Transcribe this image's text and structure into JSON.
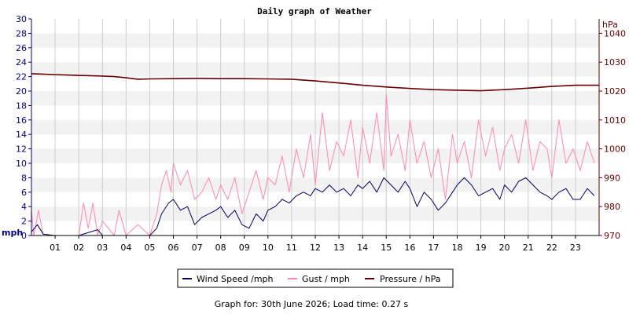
{
  "chart_data": {
    "type": "line",
    "title": "Daily graph of Weather",
    "left_axis_unit": "mph",
    "right_axis_unit": "hPa",
    "ylim_left": [
      0,
      30
    ],
    "ylim_right": [
      970,
      1045
    ],
    "left_ticks": [
      "0",
      "2",
      "4",
      "6",
      "8",
      "10",
      "12",
      "14",
      "16",
      "18",
      "20",
      "22",
      "24",
      "26",
      "28",
      "30"
    ],
    "right_ticks": [
      "970",
      "980",
      "990",
      "1000",
      "1010",
      "1020",
      "1030",
      "1040"
    ],
    "x_ticks": [
      "01",
      "02",
      "03",
      "04",
      "05",
      "06",
      "07",
      "08",
      "09",
      "10",
      "11",
      "12",
      "13",
      "14",
      "15",
      "16",
      "17",
      "18",
      "19",
      "20",
      "21",
      "22",
      "23"
    ],
    "xlim_hours": [
      0,
      24
    ],
    "grid": true,
    "legend_placement": "bottom",
    "colors": {
      "wind": "#000066",
      "gust": "#ff88aa",
      "pressure": "#660000",
      "left_axis": "#000088",
      "right_axis": "#660000",
      "band": "#f2f2f2",
      "grid": "#cccccc"
    },
    "series": [
      {
        "name": "Wind Speed /mph",
        "axis": "left",
        "x": [
          0,
          0.25,
          0.5,
          1,
          2,
          2.5,
          2.8,
          3,
          4,
          5,
          5.3,
          5.5,
          5.8,
          6,
          6.3,
          6.6,
          6.9,
          7.2,
          7.5,
          7.8,
          8,
          8.3,
          8.6,
          8.9,
          9.2,
          9.5,
          9.8,
          10,
          10.3,
          10.6,
          10.9,
          11.2,
          11.5,
          11.8,
          12,
          12.3,
          12.6,
          12.9,
          13.2,
          13.5,
          13.8,
          14,
          14.3,
          14.6,
          14.9,
          15.2,
          15.5,
          15.8,
          16,
          16.3,
          16.6,
          16.9,
          17.2,
          17.5,
          17.8,
          18,
          18.3,
          18.6,
          18.9,
          19.2,
          19.5,
          19.8,
          20,
          20.3,
          20.6,
          20.9,
          21.2,
          21.5,
          21.8,
          22,
          22.3,
          22.6,
          22.9,
          23.2,
          23.5,
          23.8
        ],
        "values": [
          0.5,
          1.5,
          0.2,
          0,
          0,
          0.5,
          0.8,
          0,
          0,
          0,
          1,
          3,
          4.5,
          5,
          3.5,
          4,
          1.5,
          2.5,
          3,
          3.5,
          4,
          2.5,
          3.5,
          1.5,
          1,
          3,
          2,
          3.5,
          4,
          5,
          4.5,
          5.5,
          6,
          5.5,
          6.5,
          6,
          7,
          6,
          6.5,
          5.5,
          7,
          6.5,
          7.5,
          6,
          8,
          7,
          6,
          7.5,
          6.5,
          4,
          6,
          5,
          3.5,
          4.5,
          6,
          7,
          8,
          7,
          5.5,
          6,
          6.5,
          5,
          7,
          6,
          7.5,
          8,
          7,
          6,
          5.5,
          5,
          6,
          6.5,
          5,
          5,
          6.5,
          5.5
        ]
      },
      {
        "name": "Gust / mph",
        "axis": "left",
        "x": [
          0,
          0.1,
          0.3,
          0.5,
          1,
          2,
          2.2,
          2.4,
          2.6,
          2.8,
          3,
          3.5,
          3.7,
          4,
          4.5,
          5,
          5.3,
          5.5,
          5.7,
          5.9,
          6,
          6.3,
          6.6,
          6.9,
          7.2,
          7.5,
          7.8,
          8,
          8.3,
          8.6,
          8.9,
          9.2,
          9.5,
          9.8,
          10,
          10.3,
          10.6,
          10.9,
          11.2,
          11.5,
          11.8,
          12,
          12.3,
          12.6,
          12.9,
          13.2,
          13.5,
          13.8,
          14,
          14.3,
          14.6,
          14.9,
          15,
          15.2,
          15.5,
          15.8,
          16,
          16.3,
          16.6,
          16.9,
          17.2,
          17.5,
          17.8,
          18,
          18.3,
          18.6,
          18.9,
          19.2,
          19.5,
          19.8,
          20,
          20.3,
          20.6,
          20.9,
          21.2,
          21.5,
          21.8,
          22,
          22.3,
          22.6,
          22.9,
          23.2,
          23.5,
          23.8
        ],
        "values": [
          3.5,
          0,
          3.5,
          0,
          0,
          0,
          4.5,
          1,
          4.5,
          0,
          2,
          0,
          3.5,
          0,
          1.5,
          0,
          3,
          7,
          9,
          6,
          10,
          7,
          9,
          5,
          6,
          8,
          5,
          7,
          5,
          8,
          3,
          6,
          9,
          5,
          8,
          7,
          11,
          6,
          12,
          8,
          14,
          7,
          17,
          9,
          13,
          11,
          16,
          8,
          15,
          10,
          17,
          9,
          19.5,
          11,
          14,
          9,
          16,
          10,
          13,
          8,
          12,
          5,
          14,
          10,
          13,
          8,
          16,
          11,
          15,
          9,
          12,
          14,
          10,
          16,
          9,
          13,
          12,
          8,
          16,
          10,
          12,
          9,
          13,
          10
        ]
      },
      {
        "name": "Pressure / hPa",
        "axis": "right",
        "x": [
          0,
          1,
          2,
          3,
          3.5,
          4,
          4.5,
          5,
          6,
          7,
          8,
          9,
          10,
          11,
          12,
          13,
          14,
          15,
          16,
          17,
          18,
          19,
          20,
          21,
          22,
          23,
          24
        ],
        "values": [
          1026,
          1025.7,
          1025.4,
          1025.2,
          1025,
          1024.6,
          1024.1,
          1024.2,
          1024.3,
          1024.4,
          1024.3,
          1024.3,
          1024.2,
          1024.1,
          1023.5,
          1022.8,
          1022,
          1021.4,
          1020.9,
          1020.5,
          1020.3,
          1020.1,
          1020.5,
          1021,
          1021.6,
          1022,
          1022
        ]
      }
    ]
  },
  "footer": {
    "text": "Graph for: 30th June 2026; Load time: 0.27 s"
  }
}
